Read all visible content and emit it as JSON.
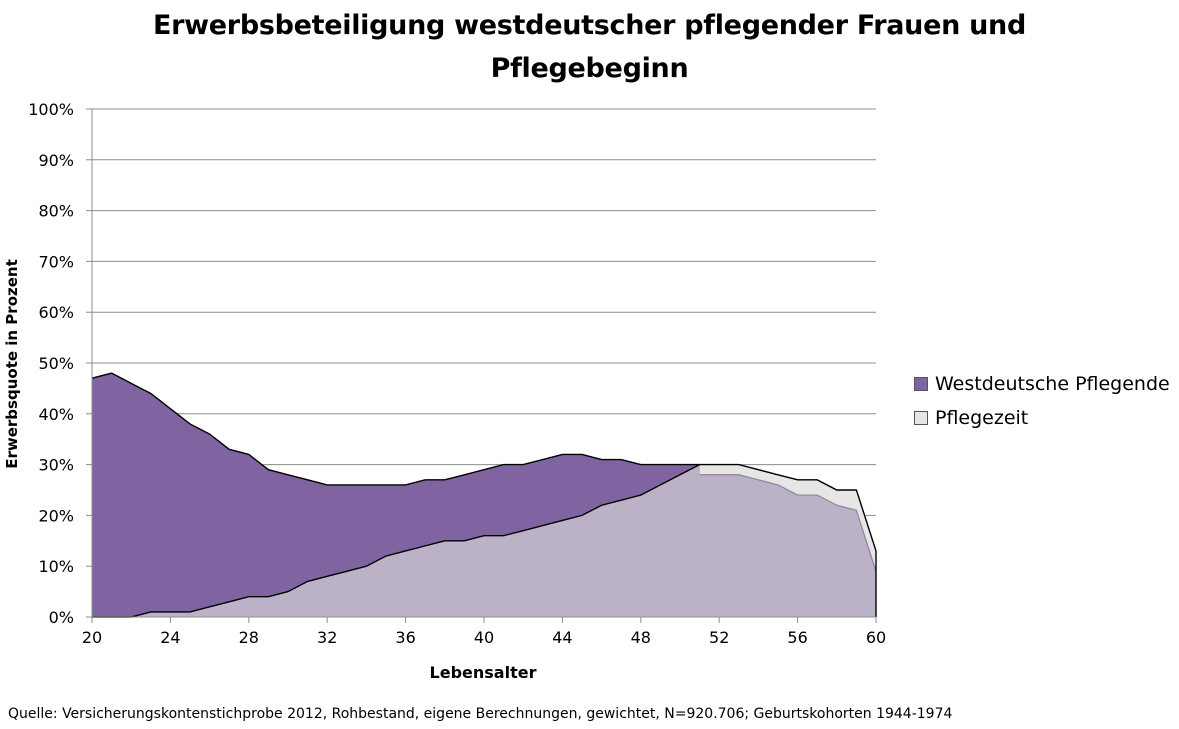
{
  "chart_data": {
    "type": "area",
    "title_lines": [
      "Erwerbsbeteiligung westdeutscher pflegender Frauen und",
      "Pflegebeginn"
    ],
    "xlabel": "Lebensalter",
    "ylabel": "Erwerbsquote in Prozent",
    "xlim": [
      20,
      60
    ],
    "ylim": [
      0,
      100
    ],
    "x_ticks": [
      "20",
      "24",
      "28",
      "32",
      "36",
      "40",
      "44",
      "48",
      "52",
      "56",
      "60"
    ],
    "y_ticks": [
      "0%",
      "10%",
      "20%",
      "30%",
      "40%",
      "50%",
      "60%",
      "70%",
      "80%",
      "90%",
      "100%"
    ],
    "grid": true,
    "legend_position": "right",
    "x": [
      20,
      21,
      22,
      23,
      24,
      25,
      26,
      27,
      28,
      29,
      30,
      31,
      32,
      33,
      34,
      35,
      36,
      37,
      38,
      39,
      40,
      41,
      42,
      43,
      44,
      45,
      46,
      47,
      48,
      49,
      50,
      51,
      52,
      53,
      54,
      55,
      56,
      57,
      58,
      59,
      60
    ],
    "series": [
      {
        "name": "Westdeutsche Pflegende",
        "color": "#8064a2",
        "values": [
          47,
          48,
          46,
          44,
          41,
          38,
          36,
          33,
          32,
          29,
          28,
          27,
          26,
          26,
          26,
          26,
          26,
          27,
          27,
          28,
          29,
          30,
          30,
          31,
          32,
          32,
          31,
          31,
          30,
          30,
          30,
          null,
          null,
          null,
          null,
          null,
          null,
          null,
          null,
          null,
          null
        ]
      },
      {
        "name": "Pflegezeit",
        "color": "#e6e6e6",
        "values": [
          0,
          0,
          0,
          1,
          1,
          1,
          2,
          3,
          4,
          4,
          5,
          7,
          8,
          9,
          10,
          12,
          13,
          14,
          15,
          15,
          16,
          16,
          17,
          18,
          19,
          20,
          22,
          23,
          24,
          26,
          28,
          30,
          30,
          30,
          29,
          28,
          27,
          27,
          25,
          25,
          13
        ]
      }
    ],
    "overlap_color": "#bcb2c8",
    "source": "Quelle: Versicherungskontenstichprobe 2012, Rohbestand, eigene Berechnungen, gewichtet, N=920.706; Geburtskohorten 1944-1974"
  }
}
